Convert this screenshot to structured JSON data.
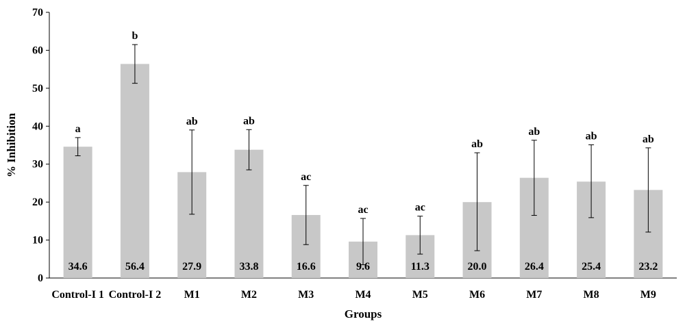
{
  "chart_data": {
    "type": "bar",
    "title": "",
    "xlabel": "Groups",
    "ylabel": "% Inhibition",
    "ylim": [
      0,
      70
    ],
    "yticks": [
      0,
      10,
      20,
      30,
      40,
      50,
      60,
      70
    ],
    "grid": false,
    "legend": "none",
    "categories": [
      "Control-I 1",
      "Control-I 2",
      "M1",
      "M2",
      "M3",
      "M4",
      "M5",
      "M6",
      "M7",
      "M8",
      "M9"
    ],
    "values": [
      34.6,
      56.4,
      27.9,
      33.8,
      16.6,
      9.6,
      11.3,
      20.0,
      26.4,
      25.4,
      23.2
    ],
    "value_labels": [
      "34.6",
      "56.4",
      "27.9",
      "33.8",
      "16.6",
      "9.6",
      "11.3",
      "20.0",
      "26.4",
      "25.4",
      "23.2"
    ],
    "error_low": [
      32.2,
      51.3,
      16.8,
      28.5,
      8.8,
      3.5,
      6.3,
      7.2,
      16.5,
      15.9,
      12.1
    ],
    "error_high": [
      37.0,
      61.5,
      39.0,
      39.1,
      24.4,
      15.7,
      16.3,
      33.0,
      36.3,
      35.1,
      34.3
    ],
    "significance": [
      "a",
      "b",
      "ab",
      "ab",
      "ac",
      "ac",
      "ac",
      "ab",
      "ab",
      "ab",
      "ab"
    ],
    "colors": {
      "bar": "#c8c8c8",
      "axis": "#000000",
      "error": "#000000"
    }
  }
}
